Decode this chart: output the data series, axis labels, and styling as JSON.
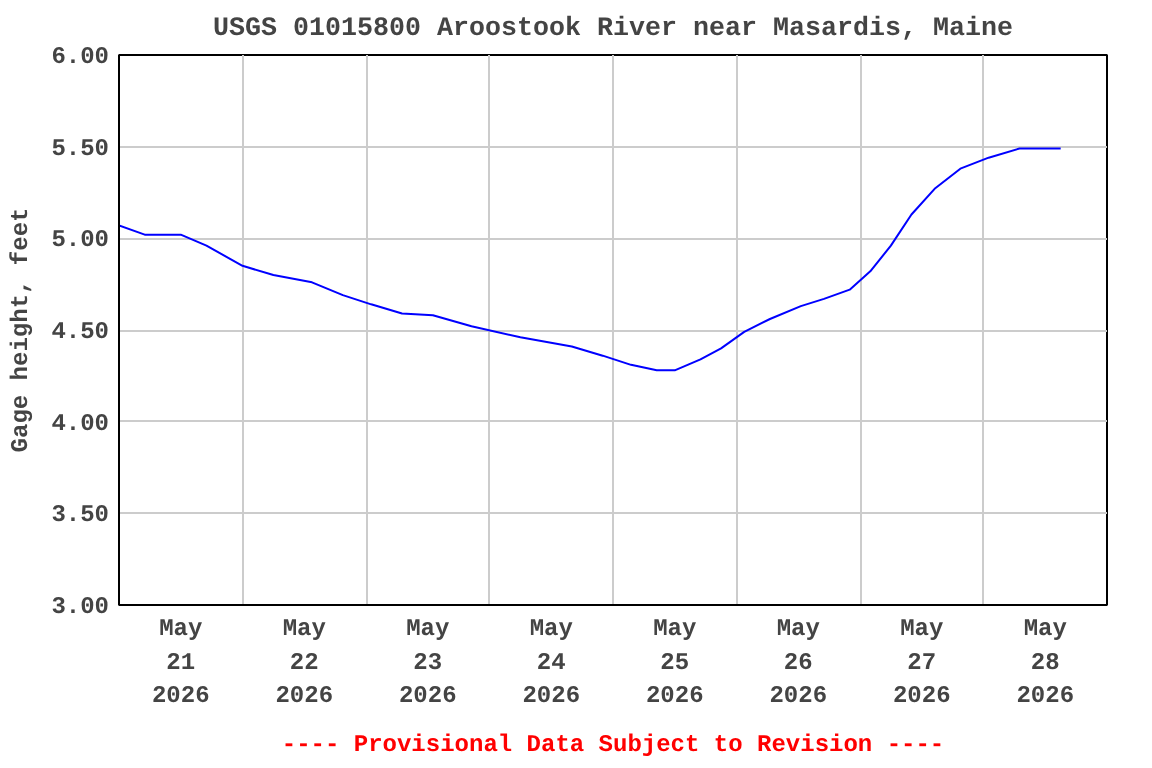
{
  "chart_data": {
    "type": "line",
    "title": "USGS 01015800 Aroostook River near Masardis, Maine",
    "ylabel": "Gage height, feet",
    "annotations": [
      "---- Provisional Data Subject to Revision ----"
    ],
    "x": [
      "2026-05-21T00:00",
      "2026-05-21T05:00",
      "2026-05-21T12:00",
      "2026-05-21T17:00",
      "2026-05-22T00:00",
      "2026-05-22T06:00",
      "2026-05-22T13:30",
      "2026-05-22T19:30",
      "2026-05-23T01:00",
      "2026-05-23T07:00",
      "2026-05-23T13:00",
      "2026-05-23T20:30",
      "2026-05-24T06:00",
      "2026-05-24T16:00",
      "2026-05-24T22:00",
      "2026-05-25T03:30",
      "2026-05-25T08:30",
      "2026-05-25T12:00",
      "2026-05-25T17:00",
      "2026-05-25T21:00",
      "2026-05-26T01:30",
      "2026-05-26T06:30",
      "2026-05-26T12:30",
      "2026-05-26T17:00",
      "2026-05-26T22:00",
      "2026-05-27T02:00",
      "2026-05-27T06:00",
      "2026-05-27T10:00",
      "2026-05-27T14:30",
      "2026-05-27T19:30",
      "2026-05-28T01:00",
      "2026-05-28T07:00",
      "2026-05-28T15:00"
    ],
    "series": [
      {
        "color": "#0000ff",
        "values": [
          5.07,
          5.02,
          5.02,
          4.96,
          4.85,
          4.8,
          4.76,
          4.69,
          4.64,
          4.59,
          4.58,
          4.52,
          4.46,
          4.41,
          4.36,
          4.31,
          4.28,
          4.28,
          4.34,
          4.4,
          4.49,
          4.56,
          4.63,
          4.67,
          4.72,
          4.82,
          4.96,
          5.13,
          5.27,
          5.38,
          5.44,
          5.49,
          5.49
        ]
      }
    ],
    "xlim": [
      "2026-05-21T00:00",
      "2026-05-29T00:00"
    ],
    "xticks": [
      {
        "value": "2026-05-21T12:00",
        "label": "May\n21\n2026"
      },
      {
        "value": "2026-05-22T00:00",
        "label": null
      },
      {
        "value": "2026-05-22T12:00",
        "label": "May\n22\n2026"
      },
      {
        "value": "2026-05-23T00:00",
        "label": null
      },
      {
        "value": "2026-05-23T12:00",
        "label": "May\n23\n2026"
      },
      {
        "value": "2026-05-24T00:00",
        "label": null
      },
      {
        "value": "2026-05-24T12:00",
        "label": "May\n24\n2026"
      },
      {
        "value": "2026-05-25T00:00",
        "label": null
      },
      {
        "value": "2026-05-25T12:00",
        "label": "May\n25\n2026"
      },
      {
        "value": "2026-05-26T00:00",
        "label": null
      },
      {
        "value": "2026-05-26T12:00",
        "label": "May\n26\n2026"
      },
      {
        "value": "2026-05-27T00:00",
        "label": null
      },
      {
        "value": "2026-05-27T12:00",
        "label": "May\n27\n2026"
      },
      {
        "value": "2026-05-28T00:00",
        "label": null
      },
      {
        "value": "2026-05-28T12:00",
        "label": "May\n28\n2026"
      }
    ],
    "ylim": [
      3.0,
      6.0
    ],
    "yticks": [
      {
        "value": 3.0,
        "label": "3.00"
      },
      {
        "value": 3.5,
        "label": "3.50"
      },
      {
        "value": 4.0,
        "label": "4.00"
      },
      {
        "value": 4.5,
        "label": "4.50"
      },
      {
        "value": 5.0,
        "label": "5.00"
      },
      {
        "value": 5.5,
        "label": "5.50"
      },
      {
        "value": 6.0,
        "label": "6.00"
      }
    ],
    "grid": true,
    "line_style": "solid",
    "marker": "none"
  }
}
